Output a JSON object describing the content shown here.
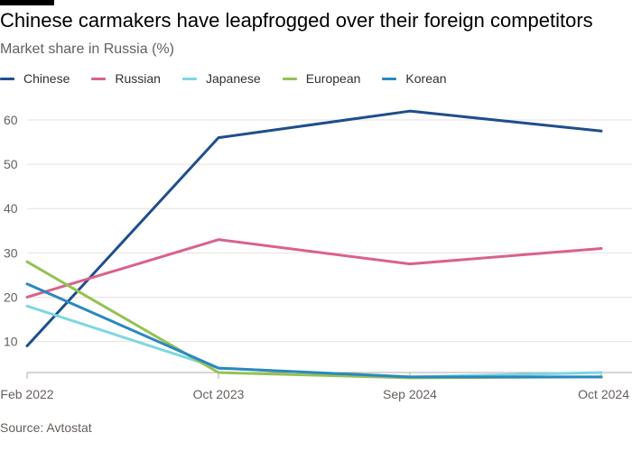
{
  "title": "Chinese carmakers have leapfrogged over their foreign competitors",
  "subtitle": "Market share in Russia (%)",
  "source": "Source: Avtostat",
  "chart_data": {
    "type": "line",
    "x": [
      "Feb 2022",
      "Oct 2023",
      "Sep 2024",
      "Oct 2024"
    ],
    "ylim": [
      3,
      65
    ],
    "yticks": [
      10,
      20,
      30,
      40,
      50,
      60
    ],
    "grid": true,
    "legend_position": "top",
    "series": [
      {
        "name": "Chinese",
        "color": "#1f4e8c",
        "values": [
          9,
          56,
          62,
          57.5
        ]
      },
      {
        "name": "Russian",
        "color": "#d9618e",
        "values": [
          20,
          33,
          27.5,
          31
        ]
      },
      {
        "name": "Japanese",
        "color": "#7ed6e3",
        "values": [
          18,
          4,
          2,
          3
        ]
      },
      {
        "name": "European",
        "color": "#96c152",
        "values": [
          28,
          3,
          1.8,
          2
        ]
      },
      {
        "name": "Korean",
        "color": "#2a88c0",
        "values": [
          23,
          4,
          2,
          2
        ]
      }
    ]
  }
}
